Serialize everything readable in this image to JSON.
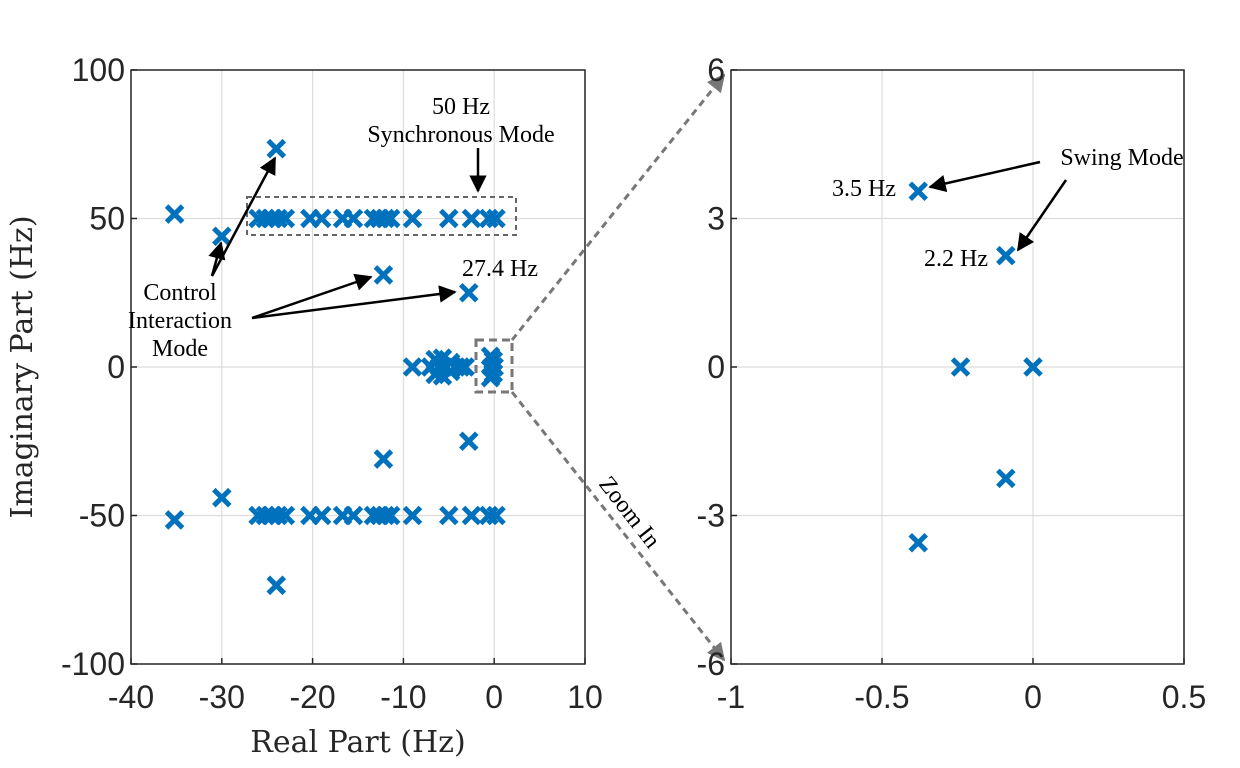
{
  "chart_data": [
    {
      "type": "scatter",
      "title": "",
      "xlabel": "Real Part (Hz)",
      "ylabel": "Imaginary Part (Hz)",
      "xlim": [
        -40,
        10
      ],
      "ylim": [
        -100,
        100
      ],
      "xticks": [
        "-40",
        "-30",
        "-20",
        "-10",
        "0",
        "10"
      ],
      "yticks": [
        "100",
        "50",
        "0",
        "-50",
        "-100"
      ],
      "grid": true,
      "marker": "x",
      "color": "#0072BD",
      "points": [
        [
          -35.2,
          51.5
        ],
        [
          -35.2,
          -51.5
        ],
        [
          -30.0,
          44.0
        ],
        [
          -30.0,
          -44.0
        ],
        [
          -24.0,
          73.5
        ],
        [
          -24.0,
          -73.5
        ],
        [
          -12.2,
          31.0
        ],
        [
          -12.2,
          -31.0
        ],
        [
          -2.8,
          25.0
        ],
        [
          -2.8,
          -25.0
        ],
        [
          -26.0,
          50
        ],
        [
          -25.2,
          50
        ],
        [
          -24.5,
          50
        ],
        [
          -23.8,
          50
        ],
        [
          -23.0,
          50
        ],
        [
          -20.3,
          50
        ],
        [
          -19.0,
          50
        ],
        [
          -16.7,
          50
        ],
        [
          -15.5,
          50
        ],
        [
          -13.3,
          50
        ],
        [
          -12.6,
          50
        ],
        [
          -12.0,
          50
        ],
        [
          -11.4,
          50
        ],
        [
          -9.0,
          50
        ],
        [
          -5.0,
          50
        ],
        [
          -2.5,
          50
        ],
        [
          -0.6,
          50
        ],
        [
          0.2,
          50
        ],
        [
          -26.0,
          -50
        ],
        [
          -25.2,
          -50
        ],
        [
          -24.5,
          -50
        ],
        [
          -23.8,
          -50
        ],
        [
          -23.0,
          -50
        ],
        [
          -20.3,
          -50
        ],
        [
          -19.0,
          -50
        ],
        [
          -16.7,
          -50
        ],
        [
          -15.5,
          -50
        ],
        [
          -13.3,
          -50
        ],
        [
          -12.6,
          -50
        ],
        [
          -12.0,
          -50
        ],
        [
          -11.4,
          -50
        ],
        [
          -9.0,
          -50
        ],
        [
          -5.0,
          -50
        ],
        [
          -2.5,
          -50
        ],
        [
          -0.6,
          -50
        ],
        [
          0.2,
          -50
        ],
        [
          -9.0,
          0
        ],
        [
          -7.0,
          0
        ],
        [
          -6.5,
          2.5
        ],
        [
          -6.5,
          -2.5
        ],
        [
          -6.0,
          0
        ],
        [
          -5.7,
          3.0
        ],
        [
          -5.7,
          -3.0
        ],
        [
          -5.3,
          0
        ],
        [
          -4.8,
          1.5
        ],
        [
          -4.8,
          -1.5
        ],
        [
          -4.2,
          0
        ],
        [
          -3.7,
          0
        ],
        [
          -3.2,
          0
        ],
        [
          -0.4,
          3.6
        ],
        [
          -0.4,
          -3.6
        ],
        [
          -0.1,
          2.2
        ],
        [
          -0.1,
          -2.2
        ],
        [
          -0.24,
          0
        ],
        [
          0.0,
          0
        ]
      ],
      "annotations": [
        {
          "text": [
            "50 Hz",
            "Synchronous Mode"
          ]
        },
        {
          "text": [
            "27.4 Hz"
          ]
        },
        {
          "text": [
            "Control",
            "Interaction",
            "Mode"
          ]
        },
        {
          "text": [
            "Zoom In"
          ]
        }
      ]
    },
    {
      "type": "scatter",
      "title": "",
      "xlabel": "",
      "ylabel": "",
      "xlim": [
        -1,
        0.5
      ],
      "ylim": [
        -6,
        6
      ],
      "xticks": [
        "-1",
        "-0.5",
        "0",
        "0.5"
      ],
      "yticks": [
        "6",
        "3",
        "0",
        "-3",
        "-6"
      ],
      "grid": true,
      "marker": "x",
      "color": "#0072BD",
      "points": [
        [
          -0.38,
          3.55
        ],
        [
          -0.09,
          2.25
        ],
        [
          -0.24,
          0.0
        ],
        [
          0.0,
          0.0
        ],
        [
          -0.09,
          -2.25
        ],
        [
          -0.38,
          -3.55
        ]
      ],
      "annotations": [
        {
          "text": [
            "3.5 Hz"
          ]
        },
        {
          "text": [
            "2.2 Hz"
          ]
        },
        {
          "text": [
            "Swing Mode"
          ]
        }
      ]
    }
  ]
}
